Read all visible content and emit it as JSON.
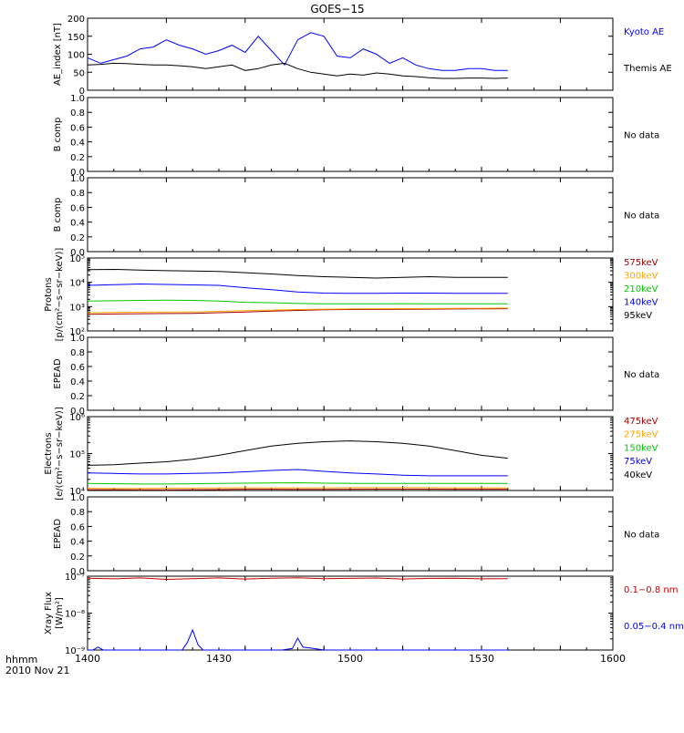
{
  "title": "GOES−15",
  "date_label": "2010 Nov 21",
  "time_label": "hhmm",
  "x_ticks": [
    "1400",
    "1430",
    "1500",
    "1530",
    "1600"
  ],
  "colors": {
    "black": "#000000",
    "blue": "#0000ff",
    "green": "#00c800",
    "orange": "#ffa500",
    "red": "#c80000",
    "darkred": "#a50000"
  },
  "chart_data": [
    {
      "type": "line",
      "ylabel": "AE_index [nT]",
      "ylim": [
        0,
        200
      ],
      "yticks": [
        "0",
        "50",
        "100",
        "150",
        "200"
      ],
      "x": [
        1400,
        1405,
        1410,
        1415,
        1420,
        1425,
        1430,
        1435,
        1440,
        1445,
        1450,
        1455,
        1460,
        1465,
        1470,
        1475,
        1480,
        1485,
        1490,
        1495,
        1500,
        1505,
        1510,
        1515,
        1520,
        1525,
        1530,
        1535,
        1540,
        1545,
        1550,
        1555,
        1560
      ],
      "series": [
        {
          "name": "Kyoto AE",
          "color": "#0000ff",
          "values": [
            90,
            75,
            85,
            95,
            115,
            120,
            140,
            125,
            115,
            100,
            110,
            125,
            105,
            150,
            110,
            70,
            140,
            160,
            150,
            95,
            90,
            115,
            100,
            75,
            90,
            70,
            60,
            55,
            55,
            60,
            60,
            55,
            55
          ]
        },
        {
          "name": "Themis AE",
          "color": "#000000",
          "values": [
            70,
            72,
            75,
            74,
            72,
            70,
            70,
            68,
            65,
            60,
            65,
            70,
            55,
            60,
            70,
            75,
            60,
            50,
            45,
            40,
            45,
            42,
            48,
            45,
            40,
            38,
            35,
            33,
            33,
            34,
            34,
            33,
            34
          ]
        }
      ]
    },
    {
      "type": "line",
      "ylabel": "B comp",
      "ylim": [
        0,
        1
      ],
      "yticks": [
        "0.0",
        "0.2",
        "0.4",
        "0.6",
        "0.8",
        "1.0"
      ],
      "note": "No data"
    },
    {
      "type": "line",
      "ylabel": "B comp",
      "ylim": [
        0,
        1
      ],
      "yticks": [
        "0.0",
        "0.2",
        "0.4",
        "0.6",
        "0.8",
        "1.0"
      ],
      "note": "No data"
    },
    {
      "type": "line",
      "ylabel_lines": [
        "Protons",
        "[p/(cm²−s−sr−keV)]"
      ],
      "yscale": "log",
      "ylim": [
        100,
        100000
      ],
      "yticks": [
        "10²",
        "10³",
        "10⁴",
        "10⁵"
      ],
      "x": [
        1400,
        1410,
        1420,
        1430,
        1440,
        1450,
        1460,
        1470,
        1480,
        1490,
        1500,
        1510,
        1520,
        1530,
        1540,
        1550,
        1560
      ],
      "series": [
        {
          "name": "575keV",
          "color": "#a50000",
          "values": [
            480,
            500,
            510,
            520,
            530,
            560,
            600,
            650,
            700,
            740,
            760,
            770,
            780,
            790,
            800,
            810,
            820
          ]
        },
        {
          "name": "300keV",
          "color": "#ffa500",
          "values": [
            560,
            580,
            590,
            600,
            610,
            640,
            680,
            720,
            760,
            790,
            810,
            820,
            830,
            840,
            850,
            860,
            870
          ]
        },
        {
          "name": "210keV",
          "color": "#00c800",
          "values": [
            1700,
            1750,
            1800,
            1850,
            1800,
            1700,
            1500,
            1450,
            1350,
            1300,
            1300,
            1300,
            1320,
            1300,
            1300,
            1300,
            1300
          ]
        },
        {
          "name": "140keV",
          "color": "#0000ff",
          "values": [
            7500,
            8000,
            8500,
            8200,
            7800,
            7500,
            6000,
            5000,
            4000,
            3600,
            3500,
            3500,
            3600,
            3600,
            3500,
            3500,
            3500
          ]
        },
        {
          "name": "95keV",
          "color": "#000000",
          "values": [
            33000,
            34000,
            32000,
            30000,
            29000,
            28000,
            25000,
            22000,
            19000,
            17000,
            16000,
            15000,
            16000,
            17000,
            16000,
            16000,
            16000
          ]
        }
      ]
    },
    {
      "type": "line",
      "ylabel": "EPEAD",
      "ylim": [
        0,
        1
      ],
      "yticks": [
        "0.0",
        "0.2",
        "0.4",
        "0.6",
        "0.8",
        "1.0"
      ],
      "note": "No data"
    },
    {
      "type": "line",
      "ylabel_lines": [
        "Electrons",
        "[e/(cm²−s−sr−keV)]"
      ],
      "yscale": "log",
      "ylim": [
        10000,
        1000000
      ],
      "yticks": [
        "10⁴",
        "10⁵",
        "10⁶"
      ],
      "x": [
        1400,
        1410,
        1420,
        1430,
        1440,
        1450,
        1460,
        1470,
        1480,
        1490,
        1500,
        1510,
        1520,
        1530,
        1540,
        1550,
        1560
      ],
      "series": [
        {
          "name": "475keV",
          "color": "#a50000",
          "values": [
            10500,
            10500,
            10400,
            10400,
            10500,
            10600,
            10800,
            10800,
            10700,
            10700,
            10800,
            10900,
            10900,
            10900,
            10800,
            10800,
            10800
          ]
        },
        {
          "name": "275keV",
          "color": "#ffa500",
          "values": [
            11500,
            11400,
            11400,
            11500,
            11600,
            11700,
            11800,
            11800,
            11800,
            11800,
            11900,
            11900,
            11900,
            11900,
            11800,
            11800,
            11800
          ]
        },
        {
          "name": "150keV",
          "color": "#00c800",
          "values": [
            15500,
            15200,
            15000,
            15000,
            15200,
            15500,
            15800,
            16000,
            16200,
            15800,
            15600,
            15500,
            15500,
            15500,
            15600,
            15600,
            15600
          ]
        },
        {
          "name": "75keV",
          "color": "#0000ff",
          "values": [
            30000,
            29000,
            28000,
            28000,
            29000,
            30000,
            32000,
            35000,
            37000,
            33000,
            30000,
            28000,
            26000,
            25000,
            25000,
            25000,
            25000
          ]
        },
        {
          "name": "40keV",
          "color": "#000000",
          "values": [
            48000,
            50000,
            55000,
            60000,
            70000,
            90000,
            120000,
            160000,
            190000,
            210000,
            220000,
            210000,
            190000,
            160000,
            120000,
            90000,
            75000
          ]
        }
      ]
    },
    {
      "type": "line",
      "ylabel": "EPEAD",
      "ylim": [
        0,
        1
      ],
      "yticks": [
        "0.0",
        "0.2",
        "0.4",
        "0.6",
        "0.8",
        "1.0"
      ],
      "note": "No data"
    },
    {
      "type": "line",
      "ylabel_lines": [
        "Xray Flux",
        "[W/m²]"
      ],
      "yscale": "log",
      "ylim": [
        1e-09,
        1e-07
      ],
      "yticks": [
        "10⁻⁹",
        "10⁻⁸",
        "10⁻⁷"
      ],
      "x": [
        1400,
        1402,
        1404,
        1406,
        1436,
        1438,
        1440,
        1442,
        1444,
        1470,
        1474,
        1478,
        1480,
        1482,
        1486,
        1490,
        1560
      ],
      "series": [
        {
          "name": "0.1−0.8 nm",
          "color": "#c80000",
          "x": [
            1400,
            1410,
            1420,
            1430,
            1440,
            1450,
            1460,
            1470,
            1480,
            1490,
            1500,
            1510,
            1520,
            1530,
            1540,
            1550,
            1560
          ],
          "values": [
            8.8e-08,
            8.5e-08,
            9e-08,
            8.2e-08,
            8.6e-08,
            9e-08,
            8.4e-08,
            8.8e-08,
            9.1e-08,
            8.6e-08,
            8.7e-08,
            8.9e-08,
            8.4e-08,
            8.7e-08,
            8.8e-08,
            8.5e-08,
            8.6e-08
          ]
        },
        {
          "name": "0.05−0.4 nm",
          "color": "#0000ff",
          "x": [
            1400,
            1402,
            1404,
            1406,
            1436,
            1438,
            1440,
            1442,
            1444,
            1470,
            1474,
            1478,
            1480,
            1482,
            1486,
            1490,
            1560
          ],
          "values": [
            1e-09,
            1e-09,
            1.2e-09,
            1e-09,
            1e-09,
            1.6e-09,
            3.5e-09,
            1.4e-09,
            1e-09,
            1e-09,
            1e-09,
            1.1e-09,
            2.1e-09,
            1.2e-09,
            1.1e-09,
            1e-09,
            1e-09
          ]
        }
      ]
    }
  ]
}
